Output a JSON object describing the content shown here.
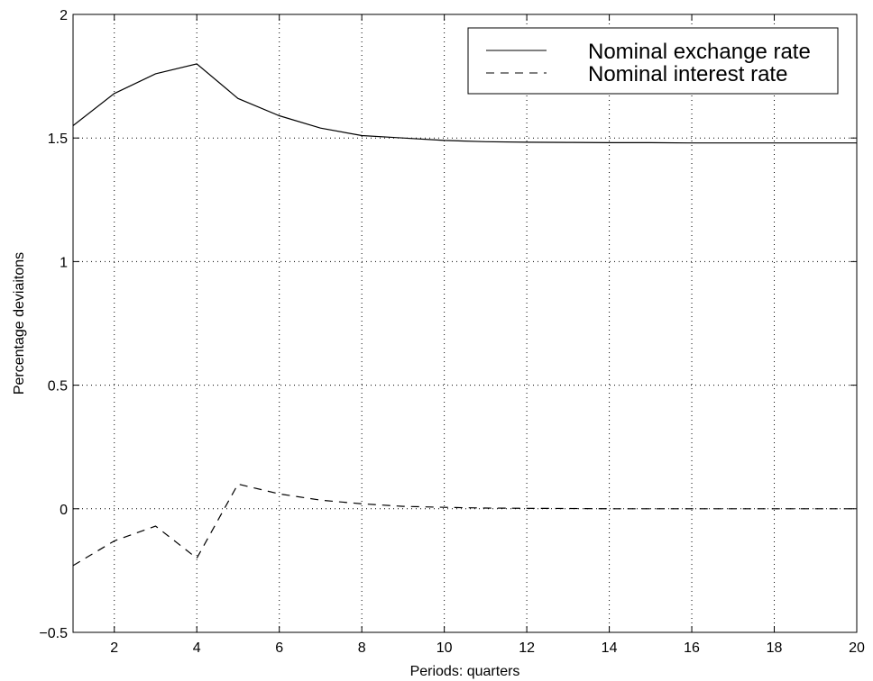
{
  "chart_data": {
    "type": "line",
    "title": "",
    "xlabel": "Periods: quarters",
    "ylabel": "Percentage deviaitons",
    "xlim": [
      1,
      20
    ],
    "ylim": [
      -0.5,
      2
    ],
    "xticks": [
      2,
      4,
      6,
      8,
      10,
      12,
      14,
      16,
      18,
      20
    ],
    "xtick_labels": [
      "2",
      "4",
      "6",
      "8",
      "10",
      "12",
      "14",
      "16",
      "18",
      "20"
    ],
    "yticks": [
      -0.5,
      0,
      0.5,
      1,
      1.5,
      2
    ],
    "ytick_labels": [
      "−0.5",
      "0",
      "0.5",
      "1",
      "1.5",
      "2"
    ],
    "grid": true,
    "legend_position": "top-right",
    "x": [
      1,
      2,
      3,
      4,
      5,
      6,
      7,
      8,
      9,
      10,
      11,
      12,
      13,
      14,
      15,
      16,
      17,
      18,
      19,
      20
    ],
    "series": [
      {
        "name": "Nominal exchange rate",
        "style": "solid",
        "color": "#000000",
        "values": [
          1.55,
          1.68,
          1.76,
          1.8,
          1.66,
          1.59,
          1.54,
          1.51,
          1.5,
          1.49,
          1.485,
          1.483,
          1.482,
          1.481,
          1.481,
          1.48,
          1.48,
          1.48,
          1.48,
          1.48
        ]
      },
      {
        "name": "Nominal interest rate",
        "style": "dashed",
        "color": "#000000",
        "values": [
          -0.23,
          -0.13,
          -0.07,
          -0.2,
          0.1,
          0.06,
          0.035,
          0.02,
          0.01,
          0.006,
          0.003,
          0.002,
          0.001,
          0.0,
          0.0,
          0.0,
          0.0,
          0.0,
          0.0,
          0.0
        ]
      }
    ]
  }
}
